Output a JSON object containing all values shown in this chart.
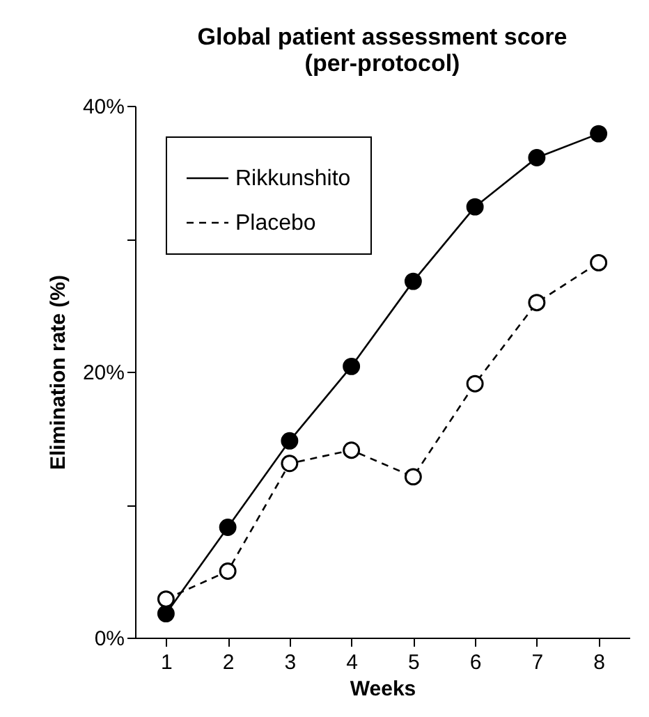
{
  "chart_data": {
    "type": "line",
    "title": [
      "Global patient assessment score",
      "(per-protocol)"
    ],
    "xlabel": "Weeks",
    "ylabel": "Elimination rate (%)",
    "categories": [
      "1",
      "2",
      "3",
      "4",
      "5",
      "6",
      "7",
      "8"
    ],
    "series": [
      {
        "name": "Rikkunshito",
        "color": "#000000",
        "line_style": "solid",
        "values": [
          1.8,
          8.3,
          14.8,
          20.4,
          26.8,
          32.4,
          36.1,
          37.9
        ]
      },
      {
        "name": "Placebo",
        "color": "#000000",
        "line_style": "dashed",
        "values": [
          2.9,
          5.0,
          13.1,
          14.1,
          12.1,
          19.1,
          25.2,
          28.2
        ]
      }
    ],
    "ylim": [
      0,
      40
    ],
    "yticks": [
      {
        "value": 0,
        "label": "0%"
      },
      {
        "value": 10,
        "label": null
      },
      {
        "value": 20,
        "label": "20%"
      },
      {
        "value": 30,
        "label": null
      },
      {
        "value": 40,
        "label": "40%"
      }
    ],
    "grid": false,
    "legend": "top left",
    "marker": "circle"
  }
}
